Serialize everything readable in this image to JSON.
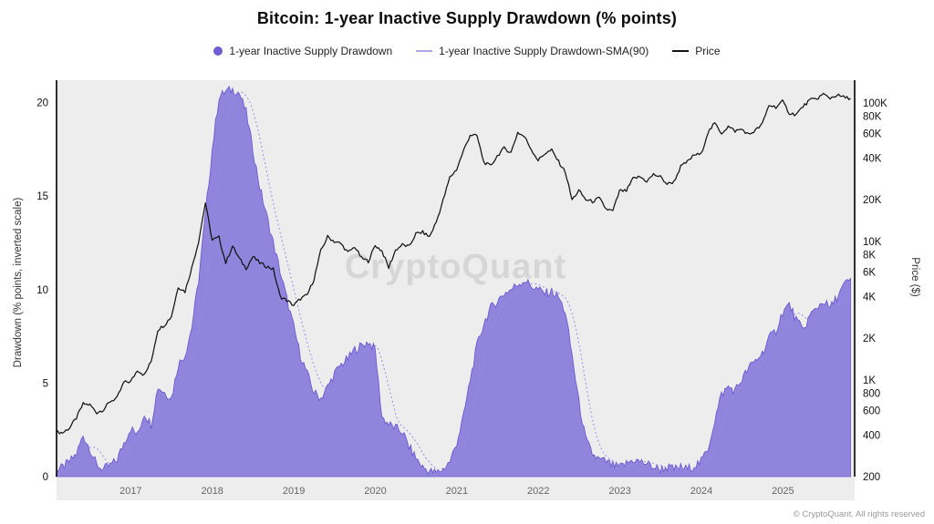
{
  "chart_data": {
    "type": "area",
    "title": "Bitcoin: 1-year Inactive Supply Drawdown (% points)",
    "watermark": "CryptoQuant",
    "footer": "© CryptoQuant. All rights reserved",
    "legend": [
      {
        "label": "1-year Inactive Supply Drawdown",
        "color": "#6f5ed6",
        "marker": "dot"
      },
      {
        "label": "1-year Inactive Supply Drawdown-SMA(90)",
        "color": "#b2a4e8",
        "marker": "line"
      },
      {
        "label": "Price",
        "color": "#141414",
        "marker": "line"
      }
    ],
    "left_axis": {
      "label": "Drawdown (% points, inverted scale)",
      "ticks": [
        20,
        15,
        10,
        5,
        0
      ],
      "range": [
        0,
        21.2
      ]
    },
    "right_axis": {
      "label": "Price ($)",
      "scale": "log",
      "range": [
        200,
        146000
      ],
      "ticks": [
        {
          "label": "100K",
          "value": 100000
        },
        {
          "label": "80K",
          "value": 80000
        },
        {
          "label": "60K",
          "value": 60000
        },
        {
          "label": "40K",
          "value": 40000
        },
        {
          "label": "20K",
          "value": 20000
        },
        {
          "label": "10K",
          "value": 10000
        },
        {
          "label": "8K",
          "value": 8000
        },
        {
          "label": "6K",
          "value": 6000
        },
        {
          "label": "4K",
          "value": 4000
        },
        {
          "label": "2K",
          "value": 2000
        },
        {
          "label": "1K",
          "value": 1000
        },
        {
          "label": "800",
          "value": 800
        },
        {
          "label": "600",
          "value": 600
        },
        {
          "label": "400",
          "value": 400
        },
        {
          "label": "200",
          "value": 200
        }
      ]
    },
    "x_axis": {
      "ticks": [
        2017,
        2018,
        2019,
        2020,
        2021,
        2022,
        2023,
        2024,
        2025
      ],
      "range": [
        2016.09,
        2025.88
      ]
    },
    "x_start": 2016.083,
    "x_step": 0.0833,
    "series": [
      {
        "name": "1-year Inactive Supply Drawdown",
        "type": "area",
        "axis": "left",
        "color": "#6f5ed6",
        "values": [
          0.3,
          0.5,
          0.8,
          1.2,
          2.2,
          1.5,
          0.6,
          0.4,
          0.6,
          0.9,
          1.8,
          2.6,
          2.2,
          3.4,
          2.8,
          4.8,
          4.5,
          4.2,
          6.0,
          6.5,
          8.0,
          10.5,
          14.0,
          17.5,
          20.3,
          20.6,
          20.7,
          20.5,
          19.5,
          17.5,
          15.5,
          14.0,
          12.5,
          11.0,
          9.5,
          8.0,
          6.5,
          5.5,
          4.5,
          4.2,
          4.8,
          5.5,
          6.0,
          6.3,
          6.8,
          7.0,
          7.2,
          6.8,
          3.2,
          2.8,
          2.6,
          2.4,
          1.6,
          1.0,
          0.5,
          0.3,
          0.2,
          0.4,
          0.8,
          1.8,
          3.2,
          5.2,
          7.0,
          8.2,
          9.0,
          9.4,
          9.8,
          10.0,
          10.3,
          10.5,
          10.2,
          10.0,
          9.8,
          9.9,
          9.6,
          8.8,
          6.5,
          4.0,
          2.0,
          1.2,
          0.9,
          0.8,
          0.6,
          0.5,
          0.7,
          0.9,
          0.8,
          0.7,
          0.5,
          0.4,
          0.5,
          0.4,
          0.5,
          0.4,
          0.6,
          0.8,
          1.5,
          3.0,
          4.4,
          4.8,
          4.6,
          5.2,
          5.8,
          6.2,
          6.6,
          7.4,
          7.8,
          8.8,
          9.2,
          8.4,
          7.8,
          8.6,
          9.0,
          9.4,
          9.0,
          9.6,
          10.2,
          10.6
        ]
      },
      {
        "name": "1-year Inactive Supply Drawdown-SMA(90)",
        "type": "line",
        "axis": "left",
        "color": "#9d8ce8",
        "style": "dotted",
        "window_days": 90,
        "derived": "sma_of_first_series"
      },
      {
        "name": "Price",
        "type": "line",
        "axis": "right",
        "scale": "log",
        "color": "#141414",
        "values": [
          420,
          415,
          450,
          530,
          670,
          660,
          580,
          610,
          700,
          740,
          960,
          970,
          1180,
          1080,
          1350,
          2300,
          2500,
          2870,
          4700,
          4340,
          6450,
          10000,
          19000,
          10200,
          10700,
          7000,
          9250,
          7500,
          6400,
          7750,
          7000,
          6600,
          6300,
          4000,
          3750,
          3450,
          3850,
          4100,
          5350,
          8550,
          10800,
          10000,
          9600,
          8300,
          9150,
          7550,
          7200,
          9350,
          8550,
          6450,
          8650,
          9450,
          9150,
          11350,
          11650,
          10800,
          13800,
          19700,
          29000,
          33100,
          45100,
          58800,
          57750,
          37300,
          35000,
          41550,
          47150,
          43800,
          61300,
          57000,
          46200,
          38500,
          43200,
          45550,
          37650,
          31800,
          19950,
          23300,
          20050,
          19400,
          20500,
          17150,
          16550,
          23150,
          23150,
          28450,
          29250,
          27200,
          30450,
          29250,
          25950,
          26950,
          34650,
          37700,
          42250,
          42550,
          61150,
          71300,
          60650,
          67500,
          62750,
          64600,
          58950,
          63350,
          70200,
          96400,
          93400,
          102400,
          84350,
          82550,
          94200,
          104600,
          107100,
          115800,
          108200,
          114000,
          110000,
          108000
        ]
      }
    ]
  }
}
